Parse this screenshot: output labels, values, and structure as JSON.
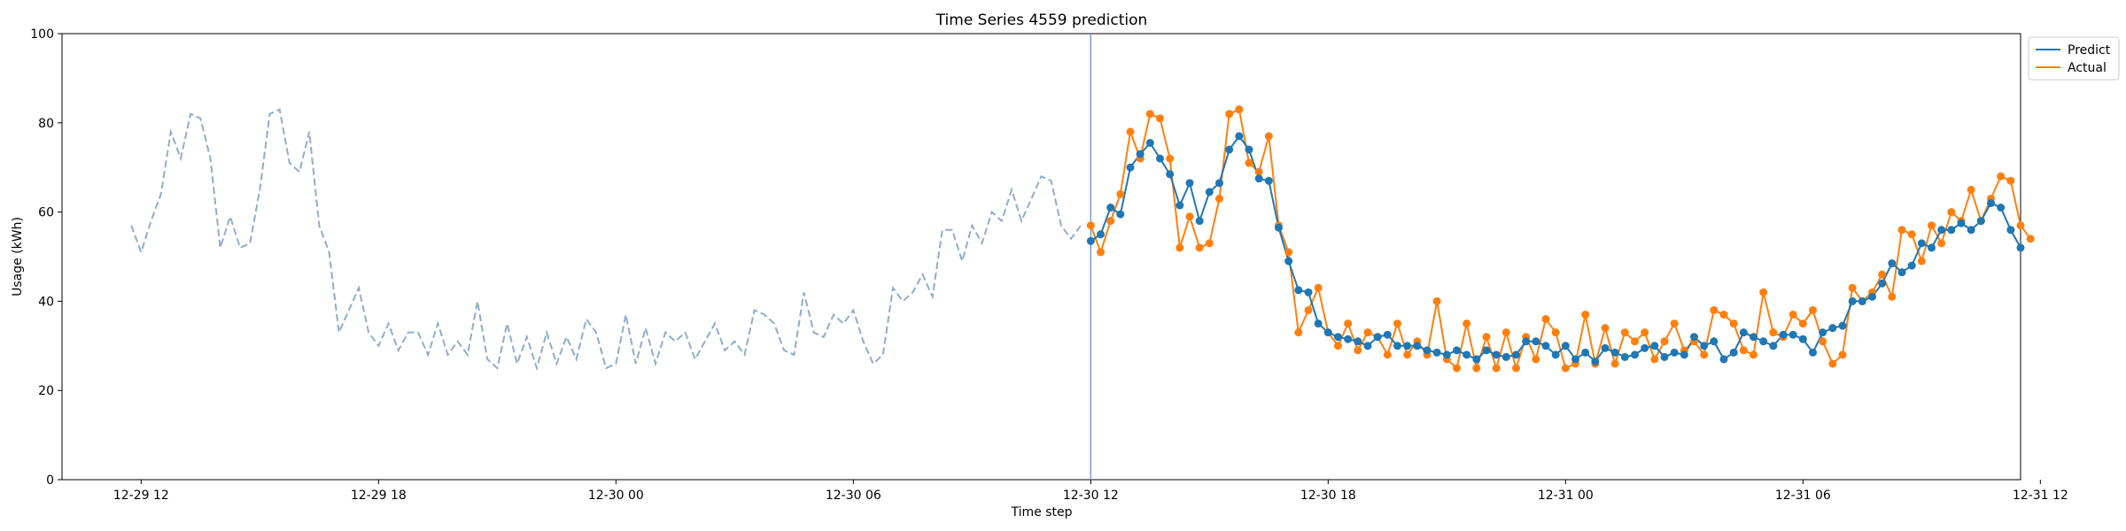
{
  "chart_data": {
    "type": "line",
    "title": "Time Series 4559 prediction",
    "xlabel": "Time step",
    "ylabel": "Usage (kWh)",
    "ylim": [
      0,
      100
    ],
    "yticks": [
      0,
      20,
      40,
      60,
      80,
      100
    ],
    "xlim_hours": [
      -2.0,
      47.5
    ],
    "xticks": [
      {
        "hour": 0,
        "label": "12-29 12"
      },
      {
        "hour": 6,
        "label": "12-29 18"
      },
      {
        "hour": 12,
        "label": "12-30 00"
      },
      {
        "hour": 18,
        "label": "12-30 06"
      },
      {
        "hour": 24,
        "label": "12-30 12"
      },
      {
        "hour": 30,
        "label": "12-30 18"
      },
      {
        "hour": 36,
        "label": "12-31 00"
      },
      {
        "hour": 42,
        "label": "12-31 06"
      },
      {
        "hour": 48,
        "label": "12-31 12"
      }
    ],
    "x_origin_label": "12-29 12:00",
    "x_step_hours": 0.25,
    "forecast_start_hour": 24,
    "legend": {
      "position": "upper right outside",
      "entries": [
        "Predict",
        "Actual"
      ]
    },
    "colors": {
      "history": "#8faccd",
      "predict": "#1f77b4",
      "actual": "#ff7f0e",
      "divider": "#7a9bd0"
    },
    "history": {
      "name": "history",
      "start_hour": -0.25,
      "step_hours": 0.25,
      "values": [
        57,
        51,
        58,
        64,
        78,
        72,
        82,
        81,
        72,
        52,
        59,
        52,
        53,
        65,
        82,
        83,
        71,
        69,
        78,
        57,
        51,
        33,
        38,
        43,
        33,
        30,
        35,
        29,
        33,
        33,
        28,
        35,
        28,
        31,
        28,
        40,
        27,
        25,
        35,
        26,
        32,
        25,
        33,
        26,
        32,
        27,
        36,
        33,
        25,
        26,
        37,
        26,
        34,
        26,
        33,
        31,
        33,
        27,
        31,
        35,
        29,
        31,
        28,
        38,
        37,
        35,
        29,
        28,
        42,
        33,
        32,
        37,
        35,
        38,
        31,
        26,
        28,
        43,
        40,
        42,
        46,
        41,
        56,
        56,
        49,
        57,
        53,
        60,
        58,
        65,
        58,
        63,
        68,
        67,
        57,
        54,
        57
      ]
    },
    "series": [
      {
        "name": "Predict",
        "start_hour": 24,
        "step_hours": 0.25,
        "values": [
          53.5,
          55,
          61,
          59.5,
          70,
          73,
          75.5,
          72,
          68.5,
          61.5,
          66.5,
          58,
          64.5,
          66.5,
          74,
          77,
          74,
          67.5,
          67,
          56.5,
          49,
          42.5,
          42,
          35,
          33,
          32,
          31.5,
          31,
          30,
          32,
          32.5,
          30,
          30,
          30,
          29,
          28.5,
          28,
          29,
          28,
          27,
          29,
          28,
          27.5,
          28,
          31,
          31,
          30,
          28,
          30,
          27,
          28.5,
          26.5,
          29.5,
          28.5,
          27.5,
          28,
          29.5,
          30,
          27.5,
          28.5,
          28,
          32,
          30,
          31,
          27,
          28.5,
          33,
          32,
          31,
          30,
          32.5,
          32.5,
          31.5,
          28.5,
          33,
          34,
          34.5,
          40,
          40,
          41,
          44,
          48.5,
          46.5,
          48,
          53,
          52,
          56,
          56,
          57.5,
          56,
          58,
          62,
          61,
          56,
          52
        ]
      },
      {
        "name": "Actual",
        "start_hour": 24,
        "step_hours": 0.25,
        "values": [
          57,
          51,
          58,
          64,
          78,
          72,
          82,
          81,
          72,
          52,
          59,
          52,
          53,
          63,
          82,
          83,
          71,
          69,
          77,
          57,
          51,
          33,
          38,
          43,
          33,
          30,
          35,
          29,
          33,
          32,
          28,
          35,
          28,
          31,
          28,
          40,
          27,
          25,
          35,
          25,
          32,
          25,
          33,
          25,
          32,
          27,
          36,
          33,
          25,
          26,
          37,
          26,
          34,
          26,
          33,
          31,
          33,
          27,
          31,
          35,
          29,
          31,
          28,
          38,
          37,
          35,
          29,
          28,
          42,
          33,
          32,
          37,
          35,
          38,
          31,
          26,
          28,
          43,
          40,
          42,
          46,
          41,
          56,
          55,
          49,
          57,
          53,
          60,
          58,
          65,
          58,
          63,
          68,
          67,
          57,
          54
        ]
      }
    ]
  }
}
